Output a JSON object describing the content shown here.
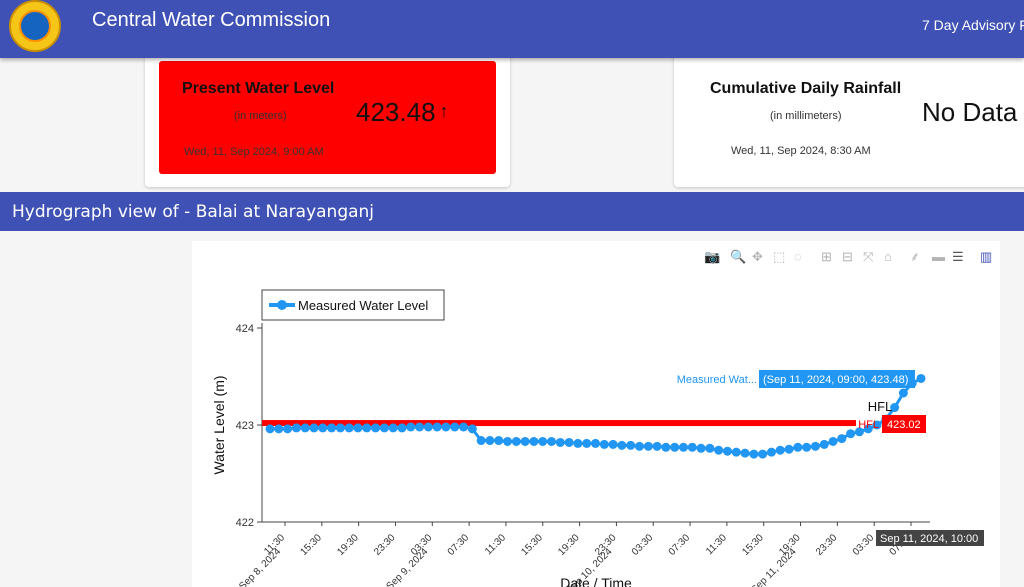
{
  "header": {
    "title": "Central Water Commission",
    "advisory_label": "7 Day Advisory F"
  },
  "level_card": {
    "title": "Present Water Level",
    "unit": "(in meters)",
    "value": "423.48",
    "trend_icon": "arrow-up-icon",
    "timestamp": "Wed, 11, Sep 2024, 9:00 AM",
    "bg_color": "#ff0000"
  },
  "rain_card": {
    "title": "Cumulative Daily Rainfall",
    "unit": "(in millimeters)",
    "value": "No Data",
    "timestamp": "Wed, 11, Sep 2024, 8:30 AM"
  },
  "section": {
    "title": "Hydrograph view of - Balai at Narayanganj",
    "bg_color": "#3f51b5"
  },
  "modebar": {
    "icons": [
      "camera-icon",
      "zoom-icon",
      "pan-icon",
      "box-select-icon",
      "lasso-select-icon",
      "zoom-in-icon",
      "zoom-out-icon",
      "autoscale-icon",
      "reset-axes-icon",
      "spike-lines-icon",
      "hover-closest-icon",
      "hover-compare-icon",
      "plotly-logo-icon"
    ]
  },
  "chart_data": {
    "type": "line",
    "xlabel": "Date / Time",
    "ylabel": "Water Level (m)",
    "ylim": [
      422,
      424
    ],
    "yticks": [
      "422",
      "423",
      "424"
    ],
    "legend": "top-left",
    "xtick_labels": [
      "11:30",
      "Sep 8, 2024",
      "15:30",
      "19:30",
      "23:30",
      "03:30",
      "Sep 9, 2024",
      "07:30",
      "11:30",
      "15:30",
      "19:30",
      "23:30",
      "03:30",
      "Sep 10, 2024",
      "07:30",
      "11:30",
      "15:30",
      "19:30",
      "23:30",
      "03:30",
      "Sep 11, 2024",
      "07:30"
    ],
    "series": [
      {
        "name": "Measured Water Level",
        "color": "#2196f3",
        "values": [
          422.96,
          422.96,
          422.96,
          422.97,
          422.97,
          422.97,
          422.97,
          422.97,
          422.97,
          422.97,
          422.97,
          422.97,
          422.97,
          422.97,
          422.97,
          422.97,
          422.98,
          422.98,
          422.98,
          422.98,
          422.98,
          422.98,
          422.98,
          422.96,
          422.84,
          422.84,
          422.84,
          422.83,
          422.83,
          422.83,
          422.83,
          422.83,
          422.83,
          422.82,
          422.82,
          422.81,
          422.81,
          422.81,
          422.8,
          422.8,
          422.79,
          422.79,
          422.78,
          422.78,
          422.78,
          422.77,
          422.77,
          422.77,
          422.77,
          422.76,
          422.76,
          422.74,
          422.73,
          422.72,
          422.71,
          422.7,
          422.7,
          422.72,
          422.74,
          422.75,
          422.77,
          422.77,
          422.78,
          422.8,
          422.83,
          422.86,
          422.91,
          422.93,
          422.96,
          423.0,
          423.06,
          423.18,
          423.33,
          423.43,
          423.48
        ]
      },
      {
        "name": "HFL",
        "color": "#ff0000",
        "values": [
          423.02
        ]
      }
    ],
    "annotations": [
      {
        "label": "Measured Wat...",
        "text": "(Sep 11, 2024, 09:00, 423.48)",
        "color": "#2196f3"
      },
      {
        "label": "HFL",
        "text": "423.02",
        "color": "#ff0000"
      },
      {
        "label": "HFL",
        "text": ""
      },
      {
        "label": "",
        "text": "Sep 11, 2024, 10:00",
        "color": "#333333"
      }
    ]
  }
}
